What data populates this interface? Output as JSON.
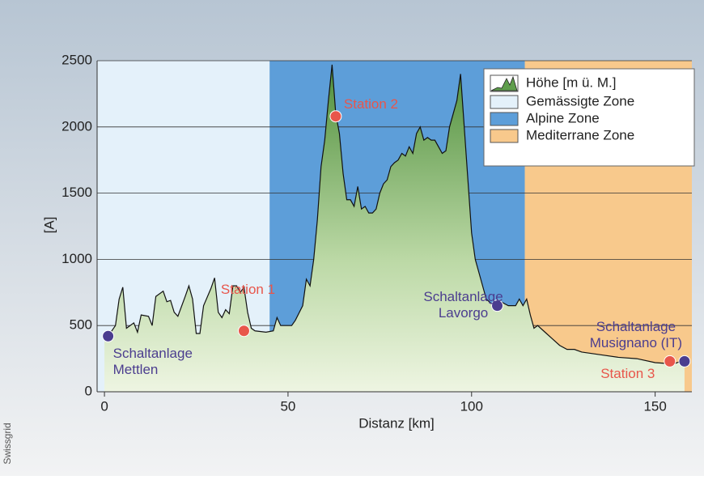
{
  "chart_data": {
    "type": "area",
    "x_label": "Distanz [km]",
    "y_label": "[A]",
    "credit": "Swissgrid",
    "xlim": [
      -2,
      160
    ],
    "ylim": [
      0,
      2500
    ],
    "xticks": [
      0,
      50,
      100,
      150
    ],
    "yticks": [
      0,
      500,
      1000,
      1500,
      2000,
      2500
    ],
    "grid": true,
    "series": [
      {
        "name": "Höhe [m ü. M.]",
        "color": "#5f9e4c",
        "x": [
          0,
          1,
          3,
          4,
          5,
          6,
          8,
          9,
          10,
          12,
          13,
          14,
          16,
          17,
          18,
          19,
          20,
          22,
          23,
          24,
          25,
          26,
          27,
          29,
          30,
          31,
          32,
          33,
          34,
          35,
          36,
          37,
          38,
          39,
          40,
          41,
          44,
          46,
          47,
          48,
          51,
          52,
          54,
          55,
          56,
          57,
          58,
          59,
          60,
          61,
          62,
          63,
          64,
          65,
          66,
          67,
          68,
          69,
          70,
          71,
          72,
          73,
          74,
          75,
          76,
          77,
          78,
          79,
          80,
          81,
          82,
          83,
          84,
          85,
          86,
          87,
          88,
          89,
          90,
          91,
          92,
          93,
          94,
          95,
          96,
          97,
          98,
          99,
          100,
          101,
          102,
          104,
          106,
          108,
          110,
          112,
          113,
          114,
          115,
          116,
          117,
          118,
          120,
          122,
          124,
          126,
          128,
          130,
          135,
          140,
          145,
          150,
          155,
          158
        ],
        "values": [
          400,
          420,
          500,
          700,
          790,
          480,
          520,
          450,
          580,
          570,
          500,
          720,
          760,
          680,
          690,
          600,
          570,
          720,
          800,
          700,
          440,
          440,
          650,
          780,
          860,
          600,
          560,
          620,
          590,
          800,
          800,
          750,
          790,
          600,
          480,
          460,
          450,
          460,
          560,
          500,
          500,
          540,
          650,
          850,
          800,
          1000,
          1300,
          1700,
          1900,
          2200,
          2470,
          2100,
          1950,
          1650,
          1450,
          1450,
          1400,
          1550,
          1380,
          1400,
          1350,
          1350,
          1380,
          1500,
          1570,
          1600,
          1700,
          1730,
          1750,
          1800,
          1780,
          1850,
          1800,
          1950,
          2000,
          1900,
          1920,
          1900,
          1900,
          1850,
          1800,
          1820,
          2000,
          2100,
          2200,
          2400,
          2000,
          1600,
          1200,
          1000,
          900,
          700,
          650,
          680,
          650,
          650,
          700,
          650,
          700,
          580,
          480,
          500,
          450,
          400,
          350,
          320,
          320,
          300,
          280,
          260,
          250,
          220,
          210,
          240
        ]
      }
    ],
    "zones": [
      {
        "name": "Gemässigte Zone",
        "from": -2,
        "to": 45,
        "color": "#e4f1fa"
      },
      {
        "name": "Alpine Zone",
        "from": 45,
        "to": 114.5,
        "color": "#5d9ed9"
      },
      {
        "name": "Mediterrane Zone",
        "from": 114.5,
        "to": 160,
        "color": "#f8c98c"
      }
    ],
    "points": [
      {
        "lines": [
          "Schaltanlage",
          "Mettlen"
        ],
        "x": 1,
        "y": 420,
        "color": "#4b3d8f"
      },
      {
        "lines": [
          "Station 1"
        ],
        "x": 38,
        "y": 460,
        "color": "#e8564b"
      },
      {
        "lines": [
          "Station 2"
        ],
        "x": 63,
        "y": 2080,
        "color": "#e8564b"
      },
      {
        "lines": [
          "Schaltanlage",
          "Lavorgo"
        ],
        "x": 107,
        "y": 650,
        "color": "#4b3d8f"
      },
      {
        "lines": [
          "Schaltanlage",
          "Musignano (IT)"
        ],
        "x": 158,
        "y": 230,
        "color": "#4b3d8f"
      },
      {
        "lines": [
          "Station 3"
        ],
        "x": 154,
        "y": 230,
        "color": "#e8564b"
      }
    ]
  }
}
